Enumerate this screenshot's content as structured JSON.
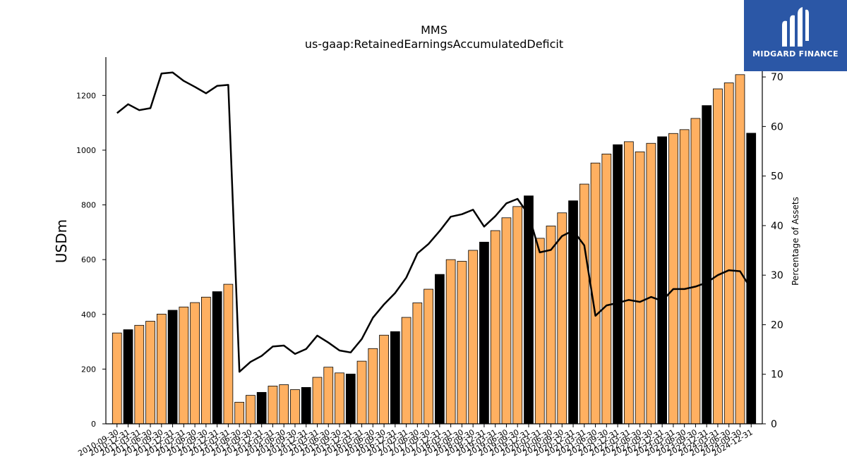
{
  "logo": {
    "text": "MIDGARD FINANCE",
    "bg_color": "#2b57a6"
  },
  "chart_data": {
    "type": "bar",
    "title": "MMS",
    "subtitle": "us-gaap:RetainedEarningsAccumulatedDeficit",
    "ylabel": "USDm",
    "y2label": "Percentage of Assets",
    "ylim": [
      0,
      1340
    ],
    "y2lim": [
      0,
      74
    ],
    "yticks": [
      0,
      200,
      400,
      600,
      800,
      1000,
      1200
    ],
    "y2ticks": [
      0,
      10,
      20,
      30,
      40,
      50,
      60,
      70
    ],
    "grid": false,
    "colors": {
      "bar_default": "#ffb061",
      "bar_highlight": "#000000",
      "line": "#000000"
    },
    "categories": [
      "2010-09-30",
      "2010-12-31",
      "2011-03-31",
      "2011-06-30",
      "2011-09-30",
      "2011-12-31",
      "2012-03-31",
      "2012-06-30",
      "2012-09-30",
      "2012-12-31",
      "2013-03-31",
      "2013-06-30",
      "2013-09-30",
      "2013-12-31",
      "2014-03-31",
      "2014-06-30",
      "2014-09-30",
      "2014-12-31",
      "2015-03-31",
      "2015-06-30",
      "2015-09-30",
      "2015-12-31",
      "2016-03-31",
      "2016-06-30",
      "2016-09-30",
      "2016-12-31",
      "2017-03-31",
      "2017-06-30",
      "2017-09-30",
      "2017-12-31",
      "2018-03-31",
      "2018-06-30",
      "2018-09-30",
      "2018-12-31",
      "2019-03-31",
      "2019-06-30",
      "2019-09-30",
      "2019-12-31",
      "2020-03-31",
      "2020-06-30",
      "2020-09-30",
      "2020-12-31",
      "2021-03-31",
      "2021-06-30",
      "2021-09-30",
      "2021-12-31",
      "2022-03-31",
      "2022-06-30",
      "2022-09-30",
      "2022-12-31",
      "2023-03-31",
      "2023-06-30",
      "2023-09-30",
      "2023-12-31",
      "2024-03-31",
      "2024-06-30",
      "2024-09-30",
      "2024-12-31"
    ],
    "series": [
      {
        "type": "bar",
        "values": [
          332,
          344,
          360,
          375,
          401,
          415,
          427,
          443,
          463,
          483,
          510,
          79,
          104,
          115,
          138,
          143,
          125,
          133,
          170,
          207,
          186,
          182,
          229,
          275,
          324,
          337,
          389,
          442,
          492,
          546,
          600,
          594,
          634,
          664,
          706,
          753,
          794,
          833,
          678,
          723,
          771,
          815,
          876,
          953,
          986,
          1020,
          1031,
          994,
          1025,
          1049,
          1061,
          1075,
          1116,
          1163,
          1224,
          1246,
          1276,
          1062
        ],
        "highlight": [
          false,
          true,
          false,
          false,
          false,
          true,
          false,
          false,
          false,
          true,
          false,
          false,
          false,
          true,
          false,
          false,
          false,
          true,
          false,
          false,
          false,
          true,
          false,
          false,
          false,
          true,
          false,
          false,
          false,
          true,
          false,
          false,
          false,
          true,
          false,
          false,
          false,
          true,
          false,
          false,
          false,
          true,
          false,
          false,
          false,
          true,
          false,
          false,
          false,
          true,
          false,
          false,
          false,
          true,
          false,
          false,
          false,
          true
        ]
      },
      {
        "type": "line",
        "axis": "right",
        "values": [
          62.7,
          64.5,
          63.3,
          63.7,
          70.7,
          70.9,
          69.2,
          68.0,
          66.7,
          68.2,
          68.4,
          10.5,
          12.5,
          13.7,
          15.6,
          15.8,
          14.1,
          15.1,
          17.8,
          16.4,
          14.8,
          14.4,
          17.1,
          21.4,
          24.1,
          26.4,
          29.5,
          34.4,
          36.3,
          38.9,
          41.8,
          42.3,
          43.2,
          39.8,
          41.9,
          44.5,
          45.4,
          42.2,
          34.6,
          35.1,
          37.9,
          39.0,
          36.0,
          21.8,
          23.9,
          24.4,
          25.0,
          24.6,
          25.6,
          24.8,
          27.2,
          27.2,
          27.7,
          28.5,
          30.0,
          31.0,
          30.8,
          27.2
        ]
      }
    ]
  }
}
